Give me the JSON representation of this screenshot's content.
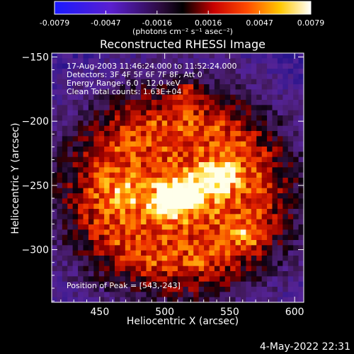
{
  "chart_data": {
    "type": "heatmap",
    "title": "Reconstructed RHESSI Image",
    "xlabel": "Heliocentric X (arcsec)",
    "ylabel": "Heliocentric Y (arcsec)",
    "xlim": [
      413,
      607
    ],
    "ylim": [
      -341,
      -147
    ],
    "x_ticks": [
      450,
      500,
      550,
      600
    ],
    "y_ticks": [
      -150,
      -200,
      -250,
      -300
    ],
    "colorbar": {
      "min": -0.0079,
      "max": 0.0079,
      "ticks": [
        "-0.0079",
        "-0.0047",
        "-0.0016",
        "0.0016",
        "0.0047",
        "0.0079"
      ],
      "units_label": "(photons cm⁻² s⁻¹ asec⁻²)",
      "colormap": "blue-purple-black-red-orange-yellow-white"
    },
    "annotations": {
      "time_range": "17-Aug-2003 11:46:24.000 to 11:52:24.000",
      "detectors": "Detectors: 3F 4F 5F 6F 7F 8F, Att 0",
      "energy_range": "Energy Range: 6.0 - 12.0 keV",
      "algorithm": "Clean     Total counts: 1.63E+04",
      "peak": "Position of Peak = [543,-243]"
    },
    "peak_position": [
      543,
      -243
    ],
    "sources": [
      {
        "x": 503,
        "y": -262,
        "sigma": 10,
        "amp": 1.0
      },
      {
        "x": 521,
        "y": -255,
        "sigma": 11,
        "amp": 0.85
      },
      {
        "x": 543,
        "y": -243,
        "sigma": 9,
        "amp": 0.95
      },
      {
        "x": 468,
        "y": -258,
        "sigma": 9,
        "amp": 0.55
      },
      {
        "x": 520,
        "y": -178,
        "sigma": 7,
        "amp": 0.6
      },
      {
        "x": 565,
        "y": -290,
        "sigma": 8,
        "amp": 0.45
      }
    ]
  },
  "footer": {
    "date": "4-May-2022 22:31"
  }
}
